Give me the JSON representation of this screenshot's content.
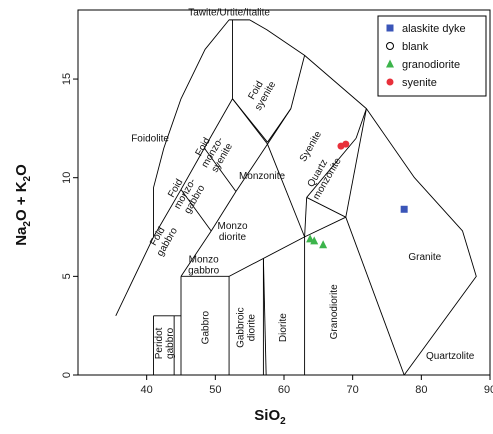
{
  "chart_data": {
    "type": "scatter",
    "title": "",
    "xlabel": "SiO",
    "xlabel_sub": "2",
    "ylabel_parts": [
      "Na",
      "2",
      "O + K",
      "2",
      "O"
    ],
    "xlim": [
      30,
      90
    ],
    "ylim": [
      0,
      18.5
    ],
    "xticks": [
      40,
      50,
      60,
      70,
      80,
      90
    ],
    "yticks": [
      0,
      5,
      10,
      15
    ],
    "fields": [
      {
        "name": "Tawite/Urtite/Italite",
        "lines": [
          "Tawite/Urtite/Italite"
        ],
        "tx": 52,
        "ty": 18.4,
        "rot": 0
      },
      {
        "name": "Foidolite",
        "lines": [
          "Foidolite"
        ],
        "tx": 40.5,
        "ty": 12.0,
        "rot": 0
      },
      {
        "name": "Foid syenite",
        "lines": [
          "Foid",
          "syenite"
        ],
        "tx": 56.5,
        "ty": 14.3,
        "rot": -60
      },
      {
        "name": "Foid monzo-syenite",
        "lines": [
          "Foid",
          "monzo-",
          "syenite"
        ],
        "tx": 49.5,
        "ty": 11.3,
        "rot": -60
      },
      {
        "name": "Foid monzo-gabbro",
        "lines": [
          "Foid",
          "monzo-",
          "gabbro"
        ],
        "tx": 45.5,
        "ty": 9.2,
        "rot": -60
      },
      {
        "name": "Foid gabbro",
        "lines": [
          "Foid",
          "gabbro"
        ],
        "tx": 42.2,
        "ty": 6.9,
        "rot": -60
      },
      {
        "name": "Syenite",
        "lines": [
          "Syenite"
        ],
        "tx": 63.8,
        "ty": 11.6,
        "rot": -60
      },
      {
        "name": "Quartz monzonite",
        "lines": [
          "Quartz",
          "monzonite"
        ],
        "tx": 65.5,
        "ty": 10.1,
        "rot": -60
      },
      {
        "name": "Monzonite",
        "lines": [
          "Monzonite"
        ],
        "tx": 56.8,
        "ty": 10.1,
        "rot": 0
      },
      {
        "name": "Monzo diorite",
        "lines": [
          "Monzo",
          "diorite"
        ],
        "tx": 52.5,
        "ty": 7.3,
        "rot": 0
      },
      {
        "name": "Monzo gabbro",
        "lines": [
          "Monzo",
          "gabbro"
        ],
        "tx": 48.3,
        "ty": 5.6,
        "rot": 0
      },
      {
        "name": "Peridot gabbro",
        "lines": [
          "Peridot",
          "gabbro"
        ],
        "tx": 42.5,
        "ty": 1.6,
        "rot": -90
      },
      {
        "name": "Gabbro",
        "lines": [
          "Gabbro"
        ],
        "tx": 48.5,
        "ty": 2.4,
        "rot": -90
      },
      {
        "name": "Gabbroic diorite",
        "lines": [
          "Gabbroic",
          "diorite"
        ],
        "tx": 54.4,
        "ty": 2.4,
        "rot": -90
      },
      {
        "name": "Diorite",
        "lines": [
          "Diorite"
        ],
        "tx": 59.8,
        "ty": 2.4,
        "rot": -90
      },
      {
        "name": "Granodiorite",
        "lines": [
          "Granodiorite"
        ],
        "tx": 67.2,
        "ty": 3.2,
        "rot": -90
      },
      {
        "name": "Granite",
        "lines": [
          "Granite"
        ],
        "tx": 80.5,
        "ty": 6.0,
        "rot": 0
      },
      {
        "name": "Quartzolite",
        "lines": [
          "Quartzolite"
        ],
        "tx": 84.2,
        "ty": 1.0,
        "rot": 0
      }
    ],
    "series": [
      {
        "name": "alaskite dyke",
        "marker": "square",
        "color": "#3a55b8",
        "x": [
          77.5
        ],
        "y": [
          8.4
        ]
      },
      {
        "name": "blank",
        "marker": "circle-open",
        "color": "#000000",
        "x": [],
        "y": []
      },
      {
        "name": "granodiorite",
        "marker": "triangle",
        "color": "#3cb44b",
        "x": [
          63.8,
          64.4,
          65.7
        ],
        "y": [
          6.9,
          6.8,
          6.6
        ]
      },
      {
        "name": "syenite",
        "marker": "circle",
        "color": "#e8303a",
        "x": [
          68.3,
          69.0
        ],
        "y": [
          11.6,
          11.7
        ]
      }
    ],
    "legend_position": "top-right",
    "grid": false
  }
}
